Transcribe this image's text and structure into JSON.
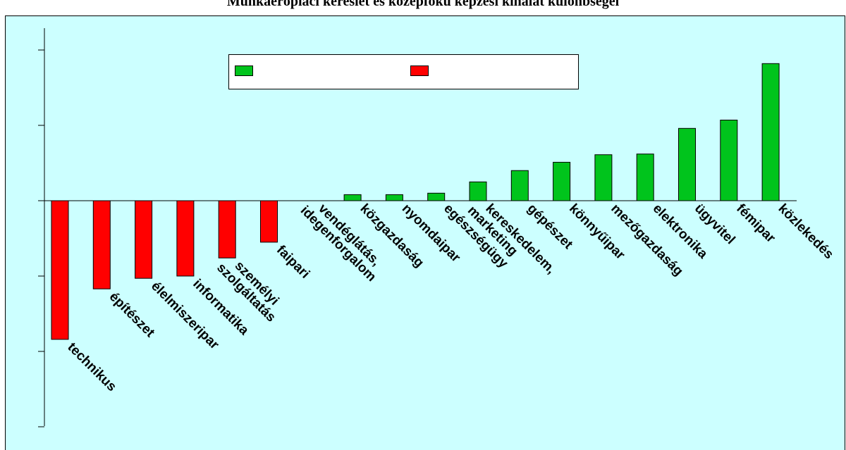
{
  "chart_data": {
    "type": "bar",
    "title": "Munkaerőpiaci kereslet és középfokú képzési kínálat különbségei",
    "xlabel": "",
    "ylabel": "",
    "ylim": [
      -3,
      2
    ],
    "grid": false,
    "legend": {
      "placement": "top-center",
      "entries": [
        "",
        ""
      ]
    },
    "categories": [
      "technikus",
      "építészet",
      "élelmiszeripar",
      "informatika",
      "személyi szolgáltatás",
      "faipari",
      "vendéglátás, idegenforgalom",
      "közgazdaság",
      "nyomdaipar",
      "egészségügy",
      "kereskedelem, marketing",
      "gépészet",
      "könnyűipar",
      "mezőgazdaság",
      "elektronika",
      "ügyvitel",
      "fémipar",
      "közlekedés"
    ],
    "values": [
      -1.84,
      -1.17,
      -1.03,
      -1.0,
      -0.76,
      -0.55,
      0.0,
      0.08,
      0.08,
      0.1,
      0.25,
      0.4,
      0.51,
      0.61,
      0.62,
      0.96,
      1.07,
      1.82
    ],
    "colors": {
      "positive": "#00c41c",
      "negative": "#ff0000",
      "background": "#ccffff",
      "legend_box": "#ffffff"
    }
  }
}
